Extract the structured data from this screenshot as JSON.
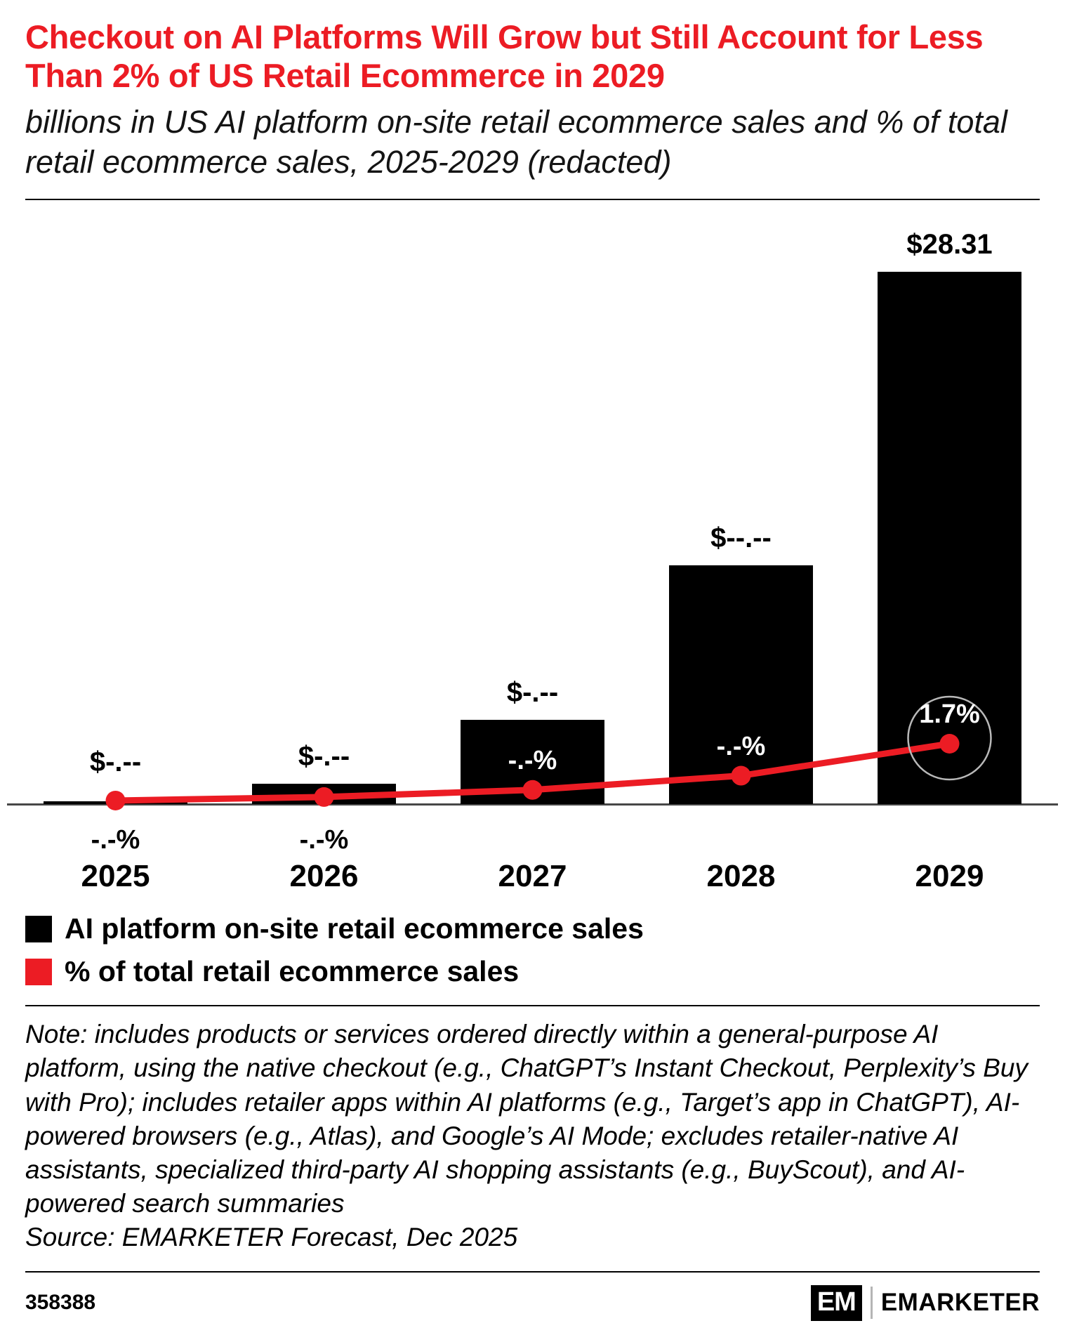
{
  "header": {
    "title": "Checkout on AI Platforms Will Grow but Still Account for Less Than 2% of US Retail Ecommerce in 2029",
    "subtitle": "billions in US AI platform on-site retail ecommerce sales and % of total retail ecommerce sales, 2025-2029 (redacted)"
  },
  "chart_data": {
    "type": "bar",
    "categories": [
      "2025",
      "2026",
      "2027",
      "2028",
      "2029"
    ],
    "series": [
      {
        "name": "AI platform on-site retail ecommerce sales",
        "type": "bar",
        "unit": "billions USD",
        "color": "#000000",
        "values": [
          0.15,
          1.1,
          4.5,
          12.7,
          28.31
        ],
        "value_labels": [
          "$-.--",
          "$-.--",
          "$-.--",
          "$--.--",
          "$28.31"
        ]
      },
      {
        "name": "% of total retail ecommerce sales",
        "type": "line",
        "unit": "%",
        "color": "#ec1c24",
        "values": [
          0.1,
          0.2,
          0.4,
          0.8,
          1.7
        ],
        "value_labels": [
          "-.-%",
          "-.-%",
          "-.-%",
          "-.-%",
          "1.7%"
        ],
        "label_positions": [
          "below-axis",
          "below-axis",
          "inside-bar",
          "inside-bar",
          "inside-bar"
        ],
        "highlight_last_point": true
      }
    ],
    "ylim_bar": [
      0,
      28.31
    ],
    "ylim_line": [
      0,
      1.7
    ],
    "grid": false,
    "legend_position": "bottom-left"
  },
  "footnote": {
    "note": "Note: includes products or services ordered directly within a general-purpose AI platform, using the native checkout (e.g., ChatGPT’s Instant Checkout, Perplexity’s Buy with Pro); includes retailer apps within AI platforms (e.g., Target’s app in ChatGPT), AI-powered browsers (e.g., Atlas), and Google’s AI Mode; excludes retailer-native AI assistants, specialized third-party AI shopping assistants (e.g., BuyScout), and AI-powered search summaries",
    "source": "Source: EMARKETER Forecast, Dec 2025"
  },
  "footer": {
    "chart_id": "358388",
    "logo_mark": "EM",
    "logo_text": "EMARKETER"
  },
  "colors": {
    "accent_red": "#ec1c24",
    "bar_black": "#000000",
    "axis_gray": "#474747"
  }
}
